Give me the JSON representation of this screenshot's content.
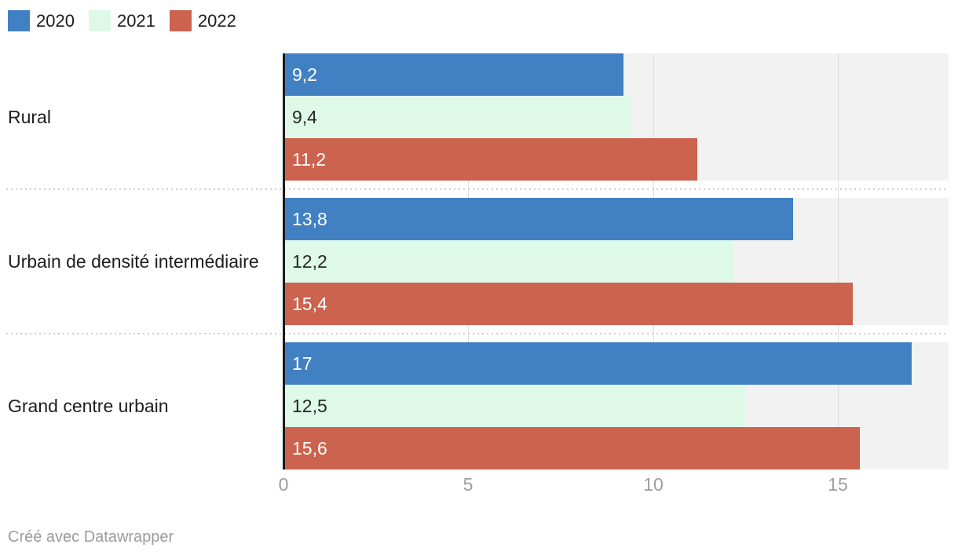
{
  "chart_data": {
    "type": "bar",
    "orientation": "horizontal",
    "categories": [
      "Rural",
      "Urbain de densité intermédiaire",
      "Grand centre urbain"
    ],
    "series": [
      {
        "name": "2020",
        "color": "#4280c4",
        "label_color": "#ffffff",
        "values": [
          9.2,
          13.8,
          17
        ],
        "labels": [
          "9,2",
          "13,8",
          "17"
        ]
      },
      {
        "name": "2021",
        "color": "#def9e8",
        "label_color": "#262626",
        "values": [
          9.4,
          12.2,
          12.5
        ],
        "labels": [
          "9,4",
          "12,2",
          "12,5"
        ]
      },
      {
        "name": "2022",
        "color": "#cb634e",
        "label_color": "#ffffff",
        "values": [
          11.2,
          15.4,
          15.6
        ],
        "labels": [
          "11,2",
          "15,4",
          "15,6"
        ]
      }
    ],
    "xlim": [
      0,
      18
    ],
    "x_ticks": [
      0,
      5,
      10,
      15
    ],
    "x_tick_labels": [
      "0",
      "5",
      "10",
      "15"
    ],
    "grid": true,
    "legend_position": "top-left",
    "plot_background": "#f2f2f2",
    "axis_line_color": "#1a1a1a",
    "gridline_color": "#dedede"
  },
  "footer": {
    "attribution": "Créé avec Datawrapper"
  }
}
